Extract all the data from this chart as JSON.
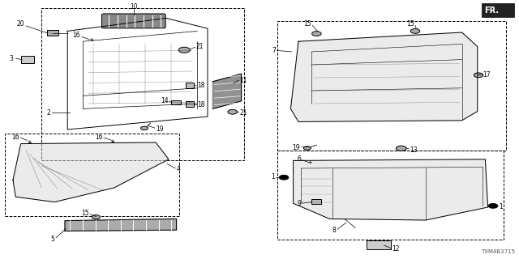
{
  "diagram_code": "TXM4B3715",
  "background_color": "#ffffff",
  "line_color": "#000000",
  "fr_label": "FR.",
  "label_fs": 5.5,
  "diagram_code_fs": 5,
  "fr_fs": 7
}
